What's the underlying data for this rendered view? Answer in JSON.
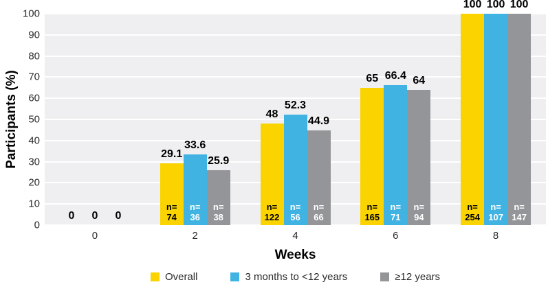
{
  "chart_data": {
    "type": "bar",
    "title": "",
    "xlabel": "Weeks",
    "ylabel": "Participants (%)",
    "ylim": [
      0,
      100
    ],
    "y_ticks": [
      0,
      10,
      20,
      30,
      40,
      50,
      60,
      70,
      80,
      90,
      100
    ],
    "grid": true,
    "legend_position": "bottom",
    "plot_bg": "#efeff1",
    "gridline_color": "#ffffff",
    "categories": [
      "0",
      "2",
      "4",
      "6",
      "8"
    ],
    "n_prefix": "n=",
    "series": [
      {
        "name": "Overall",
        "color": "#fbd400",
        "n_text_color": "#000000",
        "values": [
          0,
          29.1,
          48,
          65,
          100
        ],
        "value_labels": [
          "0",
          "29.1",
          "48",
          "65",
          "100"
        ],
        "n": [
          "",
          "74",
          "122",
          "165",
          "254"
        ]
      },
      {
        "name": "3 months to <12 years",
        "color": "#41b3e3",
        "n_text_color": "#ffffff",
        "values": [
          0,
          33.6,
          52.3,
          66.4,
          100
        ],
        "value_labels": [
          "0",
          "33.6",
          "52.3",
          "66.4",
          "100"
        ],
        "n": [
          "",
          "36",
          "56",
          "71",
          "107"
        ]
      },
      {
        "name": "≥12 years",
        "color": "#949598",
        "n_text_color": "#ffffff",
        "values": [
          0,
          25.9,
          44.9,
          64,
          100
        ],
        "value_labels": [
          "0",
          "25.9",
          "44.9",
          "64",
          "100"
        ],
        "n": [
          "",
          "38",
          "66",
          "94",
          "147"
        ]
      }
    ]
  }
}
